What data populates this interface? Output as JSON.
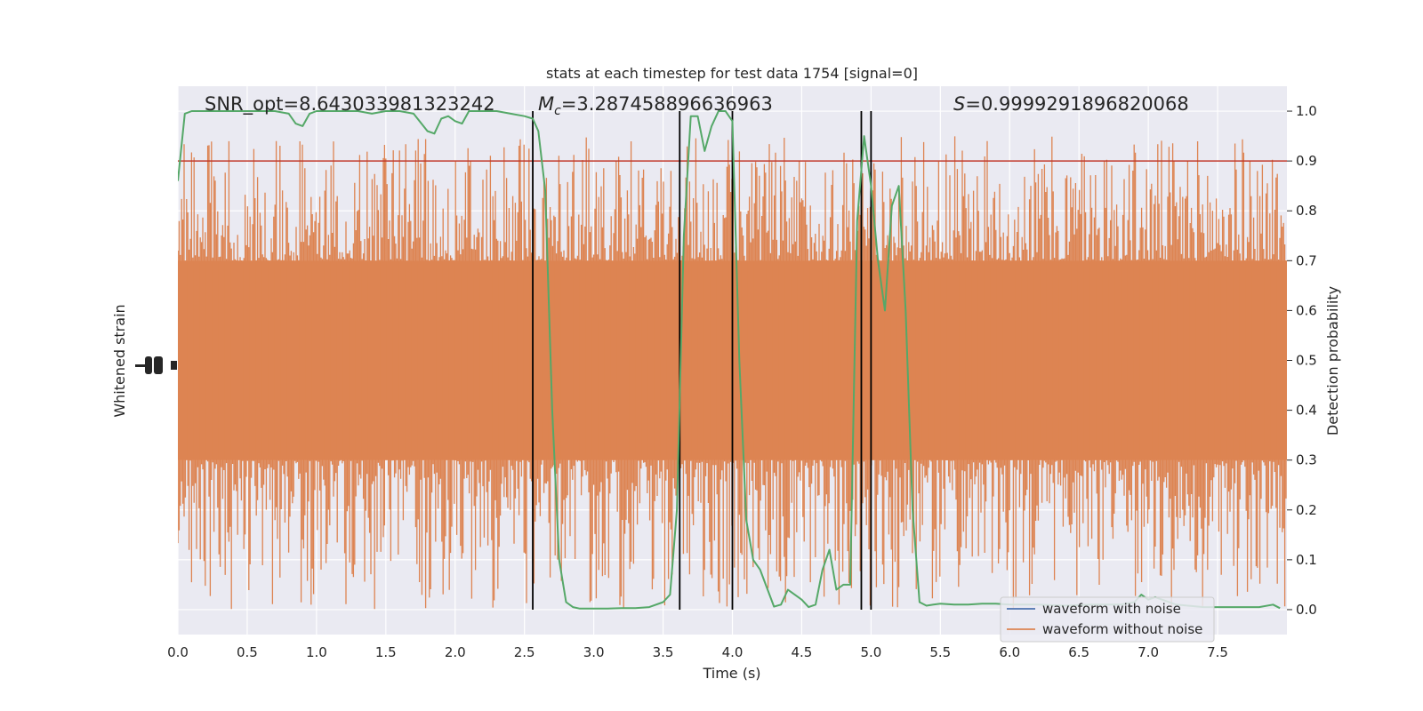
{
  "chart_data": {
    "type": "line",
    "title": "stats at each timestep for test data 1754 [signal=0]",
    "xlabel": "Time (s)",
    "ylabel_left": "Whitened strain",
    "ylabel_right": "Detection probability",
    "xlim": [
      0,
      8
    ],
    "ylim_right": [
      -0.05,
      1.05
    ],
    "x_ticks": [
      "0.0",
      "0.5",
      "1.0",
      "1.5",
      "2.0",
      "2.5",
      "3.0",
      "3.5",
      "4.0",
      "4.5",
      "5.0",
      "5.5",
      "6.0",
      "6.5",
      "7.0",
      "7.5"
    ],
    "y_ticks_right": [
      "0.0",
      "0.1",
      "0.2",
      "0.3",
      "0.4",
      "0.5",
      "0.6",
      "0.7",
      "0.8",
      "0.9",
      "1.0"
    ],
    "annotations": {
      "snr": "SNR_opt=8.643033981323242",
      "mc_symbol": "M",
      "mc_sub": "c",
      "mc_value": "=3.287458896636963",
      "s_symbol": "S",
      "s_value": "=0.9999291896820068"
    },
    "threshold": 0.9,
    "vlines": [
      2.56,
      3.62,
      4.0,
      4.93,
      5.0
    ],
    "legend": {
      "position": "lower right",
      "entries": [
        "waveform with noise",
        "waveform without noise"
      ]
    },
    "series": [
      {
        "name": "waveform without noise",
        "color": "#dd8452",
        "note_visual": "dense noise band",
        "band": {
          "core_low": 0.3,
          "core_high": 0.7,
          "spike_low": 0.0,
          "spike_high": 0.95
        }
      },
      {
        "color": "#55a868",
        "x": [
          0.0,
          0.05,
          0.1,
          0.2,
          0.3,
          0.4,
          0.5,
          0.6,
          0.7,
          0.8,
          0.85,
          0.9,
          0.95,
          1.0,
          1.1,
          1.2,
          1.3,
          1.4,
          1.5,
          1.6,
          1.7,
          1.8,
          1.85,
          1.9,
          1.95,
          2.0,
          2.05,
          2.1,
          2.2,
          2.3,
          2.4,
          2.5,
          2.56,
          2.6,
          2.65,
          2.7,
          2.75,
          2.8,
          2.85,
          2.9,
          3.0,
          3.1,
          3.2,
          3.3,
          3.4,
          3.5,
          3.55,
          3.6,
          3.65,
          3.7,
          3.75,
          3.8,
          3.85,
          3.9,
          3.95,
          4.0,
          4.05,
          4.1,
          4.15,
          4.2,
          4.3,
          4.35,
          4.4,
          4.45,
          4.5,
          4.55,
          4.6,
          4.65,
          4.7,
          4.75,
          4.8,
          4.85,
          4.9,
          4.95,
          5.0,
          5.05,
          5.1,
          5.15,
          5.2,
          5.25,
          5.3,
          5.35,
          5.4,
          5.45,
          5.5,
          5.6,
          5.7,
          5.8,
          5.9,
          6.0,
          6.2,
          6.4,
          6.6,
          6.8,
          6.9,
          6.95,
          7.0,
          7.05,
          7.1,
          7.2,
          7.4,
          7.6,
          7.8,
          7.9,
          7.95
        ],
        "values": [
          0.86,
          0.995,
          1.0,
          1.0,
          1.0,
          1.0,
          1.0,
          1.0,
          1.0,
          0.995,
          0.975,
          0.97,
          0.995,
          1.0,
          1.0,
          1.0,
          1.0,
          0.995,
          1.0,
          1.0,
          0.995,
          0.96,
          0.955,
          0.985,
          0.99,
          0.98,
          0.975,
          1.0,
          1.0,
          1.0,
          0.995,
          0.99,
          0.985,
          0.96,
          0.84,
          0.4,
          0.1,
          0.015,
          0.005,
          0.002,
          0.002,
          0.002,
          0.003,
          0.003,
          0.005,
          0.015,
          0.03,
          0.2,
          0.75,
          0.99,
          0.99,
          0.92,
          0.97,
          1.0,
          1.0,
          0.98,
          0.5,
          0.18,
          0.1,
          0.08,
          0.006,
          0.01,
          0.04,
          0.03,
          0.02,
          0.005,
          0.01,
          0.08,
          0.12,
          0.04,
          0.05,
          0.05,
          0.78,
          0.95,
          0.85,
          0.7,
          0.6,
          0.81,
          0.85,
          0.6,
          0.2,
          0.015,
          0.008,
          0.01,
          0.012,
          0.01,
          0.01,
          0.012,
          0.012,
          0.01,
          0.01,
          0.008,
          0.01,
          0.01,
          0.015,
          0.03,
          0.02,
          0.025,
          0.02,
          0.01,
          0.005,
          0.005,
          0.005,
          0.01,
          0.003
        ]
      }
    ]
  }
}
